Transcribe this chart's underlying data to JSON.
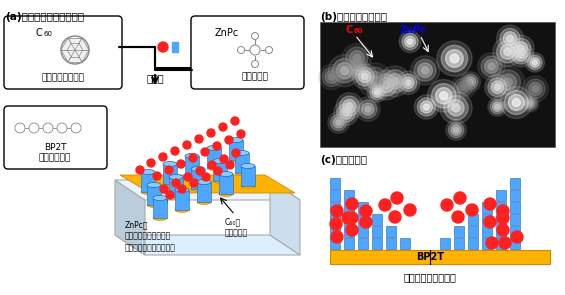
{
  "title_a": "(a)開発した作製プロセス",
  "title_b": "(b)原子間力顕微鏡像",
  "title_c": "(c)断面模式図",
  "c60_label": "C",
  "c60_sub": "60",
  "c60_material": "アクセプター材料",
  "znpc_label": "ZnPc",
  "znpc_material": "ドナー材料",
  "co_evap": "共蒸着",
  "bp2t_label": "BP2T",
  "bp2t_template": "テンプレート",
  "znpc_growth": "ZnPcは\nテンプレート上に成長\n（ヘテロエピタキシー）",
  "c60_growth": "C₆₀は\n隙間に成長",
  "ideal": "理想的な構造が実現",
  "bp2t_text": "BP2T",
  "c60_color": "#ff2020",
  "znpc_color": "#4da6ff",
  "bp2t_color": "#ffb300",
  "bg_color": "#ffffff",
  "afm_bg": "#808080"
}
